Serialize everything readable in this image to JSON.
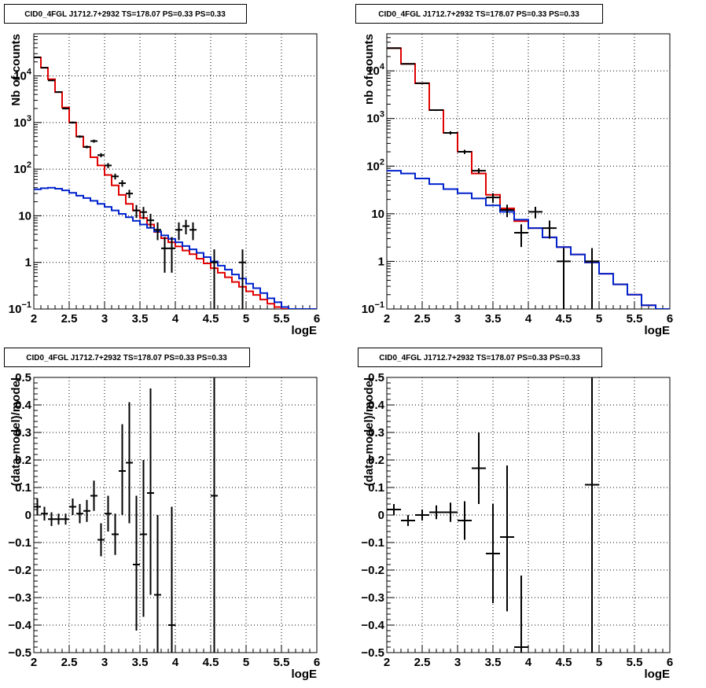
{
  "colors": {
    "data": "#000000",
    "total_model": "#e00000",
    "source_model": "#0022cc",
    "grid": "#000000"
  },
  "chart_data": [
    {
      "type": "line",
      "panel": "top-left",
      "title": "CID0_4FGL J1712.7+2932 TS=178.07 PS=0.33 PS=0.33",
      "xlabel": "logE",
      "ylabel": "Nb of counts",
      "xlim": [
        2,
        6
      ],
      "ylim": [
        0.1,
        80000
      ],
      "yscale": "log",
      "grid": true,
      "x_ticks": [
        "2",
        "2.5",
        "3",
        "3.5",
        "4",
        "4.5",
        "5",
        "5.5",
        "6"
      ],
      "y_ticks": [
        {
          "value": 0.1,
          "label": "10",
          "sup": "−1"
        },
        {
          "value": 1,
          "label": "1",
          "sup": ""
        },
        {
          "value": 10,
          "label": "10",
          "sup": ""
        },
        {
          "value": 100,
          "label": "10",
          "sup": "2"
        },
        {
          "value": 1000,
          "label": "10",
          "sup": "3"
        },
        {
          "value": 10000,
          "label": "10",
          "sup": "4"
        }
      ],
      "series": [
        {
          "role": "total_model",
          "style": "step",
          "edges": [
            2.0,
            2.1,
            2.2,
            2.3,
            2.4,
            2.5,
            2.6,
            2.7,
            2.8,
            2.9,
            3.0,
            3.1,
            3.2,
            3.3,
            3.4,
            3.5,
            3.6,
            3.7,
            3.8,
            3.9,
            4.0,
            4.1,
            4.2,
            4.3,
            4.4,
            4.5,
            4.6,
            4.7,
            4.8,
            4.9,
            5.0,
            5.1,
            5.2,
            5.3,
            5.4,
            5.5,
            5.6,
            5.7,
            5.8,
            5.9,
            6.0
          ],
          "values": [
            25000,
            15000,
            8500,
            4500,
            2100,
            1000,
            500,
            300,
            180,
            120,
            75,
            45,
            28,
            18,
            13,
            9,
            6.5,
            4.5,
            3.3,
            2.7,
            2.2,
            1.8,
            1.5,
            1.2,
            0.95,
            0.75,
            0.6,
            0.48,
            0.38,
            0.3,
            0.24,
            0.2,
            0.16,
            0.13,
            0.11,
            0.1,
            0.1,
            0.1,
            0.1,
            0.1
          ]
        },
        {
          "role": "source_model",
          "style": "step",
          "edges": [
            2.0,
            2.1,
            2.2,
            2.3,
            2.4,
            2.5,
            2.6,
            2.7,
            2.8,
            2.9,
            3.0,
            3.1,
            3.2,
            3.3,
            3.4,
            3.5,
            3.6,
            3.7,
            3.8,
            3.9,
            4.0,
            4.1,
            4.2,
            4.3,
            4.4,
            4.5,
            4.6,
            4.7,
            4.8,
            4.9,
            5.0,
            5.1,
            5.2,
            5.3,
            5.4,
            5.5,
            5.6,
            5.7,
            5.8,
            5.9,
            6.0
          ],
          "values": [
            37,
            39,
            40,
            38,
            35,
            31,
            27,
            24,
            21,
            18,
            15.5,
            13,
            11,
            9.3,
            7.8,
            6.5,
            5.5,
            4.6,
            3.8,
            3.2,
            2.7,
            2.25,
            1.9,
            1.6,
            1.3,
            1.05,
            0.85,
            0.7,
            0.55,
            0.45,
            0.35,
            0.28,
            0.22,
            0.17,
            0.14,
            0.11,
            0.1,
            0.1,
            0.1,
            0.1
          ]
        },
        {
          "role": "data",
          "style": "errorbar",
          "xerr": 0.05,
          "x": [
            2.05,
            2.15,
            2.25,
            2.35,
            2.45,
            2.55,
            2.65,
            2.75,
            2.85,
            2.95,
            3.05,
            3.15,
            3.25,
            3.35,
            3.45,
            3.55,
            3.65,
            3.75,
            3.85,
            3.95,
            4.05,
            4.15,
            4.25,
            4.55,
            4.95
          ],
          "y": [
            25000,
            15000,
            8000,
            4500,
            2000,
            1000,
            500,
            300,
            400,
            200,
            120,
            70,
            50,
            30,
            13,
            12,
            8,
            5,
            2,
            2,
            5,
            6,
            5,
            1,
            1
          ],
          "ylow": [
            24700,
            14700,
            7800,
            4350,
            1900,
            950,
            470,
            280,
            370,
            180,
            105,
            60,
            42,
            24,
            9,
            8.5,
            5.5,
            3,
            0.6,
            0.6,
            3,
            4,
            3,
            0.1,
            0.1
          ],
          "yhigh": [
            25300,
            15300,
            8200,
            4650,
            2100,
            1050,
            530,
            320,
            430,
            220,
            135,
            80,
            58,
            36,
            17,
            15.5,
            11,
            7.2,
            3.5,
            3.5,
            7.2,
            8.2,
            7.2,
            1.9,
            1.9
          ]
        }
      ]
    },
    {
      "type": "line",
      "panel": "top-right",
      "title": "CID0_4FGL J1712.7+2932 TS=178.07 PS=0.33 PS=0.33",
      "xlabel": "logE",
      "ylabel": "nb of counts",
      "xlim": [
        2,
        6
      ],
      "ylim": [
        0.1,
        60000
      ],
      "yscale": "log",
      "grid": true,
      "x_ticks": [
        "2",
        "2.5",
        "3",
        "3.5",
        "4",
        "4.5",
        "5",
        "5.5",
        "6"
      ],
      "y_ticks": [
        {
          "value": 0.1,
          "label": "10",
          "sup": "−1"
        },
        {
          "value": 1,
          "label": "1",
          "sup": ""
        },
        {
          "value": 10,
          "label": "10",
          "sup": ""
        },
        {
          "value": 100,
          "label": "10",
          "sup": "2"
        },
        {
          "value": 1000,
          "label": "10",
          "sup": "3"
        },
        {
          "value": 10000,
          "label": "10",
          "sup": "4"
        }
      ],
      "series": [
        {
          "role": "total_model",
          "style": "step",
          "edges": [
            2.0,
            2.2,
            2.4,
            2.6,
            2.8,
            3.0,
            3.2,
            3.4,
            3.6,
            3.8,
            4.0,
            4.2,
            4.4,
            4.6,
            4.8,
            5.0,
            5.2,
            5.4,
            5.6,
            5.8,
            6.0
          ],
          "values": [
            30000,
            14000,
            5500,
            1500,
            500,
            200,
            70,
            25,
            13,
            7,
            5,
            3.2,
            2,
            1.4,
            0.95,
            0.55,
            0.33,
            0.2,
            0.12,
            0.1
          ]
        },
        {
          "role": "source_model",
          "style": "step",
          "edges": [
            2.0,
            2.2,
            2.4,
            2.6,
            2.8,
            3.0,
            3.2,
            3.4,
            3.6,
            3.8,
            4.0,
            4.2,
            4.4,
            4.6,
            4.8,
            5.0,
            5.2,
            5.4,
            5.6,
            5.8,
            6.0
          ],
          "values": [
            80,
            70,
            55,
            42,
            33,
            27,
            21,
            15,
            11,
            7.5,
            5,
            3.2,
            2,
            1.4,
            0.95,
            0.55,
            0.33,
            0.2,
            0.12,
            0.1
          ]
        },
        {
          "role": "data",
          "style": "errorbar",
          "xerr": 0.1,
          "x": [
            2.1,
            2.3,
            2.5,
            2.7,
            2.9,
            3.1,
            3.3,
            3.5,
            3.7,
            3.9,
            4.1,
            4.3,
            4.5,
            4.9
          ],
          "y": [
            30000,
            14000,
            5500,
            1500,
            500,
            200,
            80,
            22,
            12,
            4,
            11,
            5,
            1,
            1
          ],
          "ylow": [
            29700,
            13800,
            5350,
            1440,
            460,
            180,
            70,
            17,
            8.5,
            2,
            8,
            3,
            0.1,
            0.1
          ],
          "yhigh": [
            30300,
            14200,
            5650,
            1560,
            540,
            220,
            90,
            27,
            15.5,
            6,
            14,
            7.2,
            1.9,
            1.9
          ]
        }
      ]
    },
    {
      "type": "scatter",
      "panel": "bottom-left",
      "title": "CID0_4FGL J1712.7+2932 TS=178.07 PS=0.33 PS=0.33",
      "xlabel": "logE",
      "ylabel": "(data-model)/model",
      "xlim": [
        2,
        6
      ],
      "ylim": [
        -0.5,
        0.5
      ],
      "grid": true,
      "x_ticks": [
        "2",
        "2.5",
        "3",
        "3.5",
        "4",
        "4.5",
        "5",
        "5.5",
        "6"
      ],
      "y_ticks": [
        "−0.5",
        "−0.4",
        "−0.3",
        "−0.2",
        "−0.1",
        "0",
        "0.1",
        "0.2",
        "0.3",
        "0.4",
        "0.5"
      ],
      "series": [
        {
          "role": "data",
          "style": "errorbar",
          "xerr": 0.05,
          "x": [
            2.05,
            2.15,
            2.25,
            2.35,
            2.45,
            2.55,
            2.65,
            2.75,
            2.85,
            2.95,
            3.05,
            3.15,
            3.25,
            3.35,
            3.45,
            3.55,
            3.65,
            3.75,
            3.95,
            4.55
          ],
          "y": [
            0.03,
            0.005,
            -0.015,
            -0.015,
            -0.015,
            0.03,
            0.005,
            0.015,
            0.07,
            -0.09,
            0.005,
            -0.07,
            0.16,
            0.19,
            -0.18,
            -0.07,
            0.08,
            -0.29,
            -0.4,
            0.07
          ],
          "ylow": [
            0.0,
            -0.02,
            -0.04,
            -0.035,
            -0.035,
            0.0,
            -0.03,
            -0.025,
            0.015,
            -0.15,
            -0.06,
            -0.145,
            0.0,
            -0.03,
            -0.42,
            -0.37,
            -0.29,
            -0.6,
            -0.6,
            -0.6
          ],
          "yhigh": [
            0.06,
            0.03,
            0.01,
            0.005,
            0.005,
            0.06,
            0.04,
            0.055,
            0.125,
            -0.03,
            0.07,
            0.005,
            0.33,
            0.41,
            0.07,
            0.2,
            0.46,
            0.0,
            0.03,
            0.6
          ]
        }
      ]
    },
    {
      "type": "scatter",
      "panel": "bottom-right",
      "title": "CID0_4FGL J1712.7+2932 TS=178.07 PS=0.33 PS=0.33",
      "xlabel": "logE",
      "ylabel": "(data-model)/model",
      "xlim": [
        2,
        6
      ],
      "ylim": [
        -0.5,
        0.5
      ],
      "grid": true,
      "x_ticks": [
        "2",
        "2.5",
        "3",
        "3.5",
        "4",
        "4.5",
        "5",
        "5.5",
        "6"
      ],
      "y_ticks": [
        "−0.5",
        "−0.4",
        "−0.3",
        "−0.2",
        "−0.1",
        "0",
        "0.1",
        "0.2",
        "0.3",
        "0.4",
        "0.5"
      ],
      "series": [
        {
          "role": "data",
          "style": "errorbar",
          "xerr": 0.1,
          "x": [
            2.1,
            2.3,
            2.5,
            2.7,
            2.9,
            3.1,
            3.3,
            3.5,
            3.7,
            3.9,
            4.9
          ],
          "y": [
            0.02,
            -0.02,
            0.0,
            0.01,
            0.01,
            -0.02,
            0.17,
            -0.14,
            -0.08,
            -0.48,
            0.11
          ],
          "ylow": [
            0.0,
            -0.04,
            -0.02,
            -0.015,
            -0.025,
            -0.09,
            0.04,
            -0.32,
            -0.35,
            -0.6,
            -0.6
          ],
          "yhigh": [
            0.04,
            0.0,
            0.02,
            0.035,
            0.045,
            0.05,
            0.3,
            0.04,
            0.18,
            -0.22,
            0.6
          ]
        }
      ]
    }
  ]
}
